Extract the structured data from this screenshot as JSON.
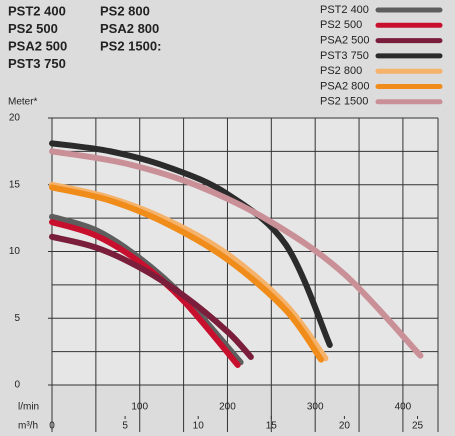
{
  "chart_data": {
    "type": "line",
    "header": [
      "PST2 400",
      "PS2 500",
      "PSA2 500",
      "PST3 750",
      "PS2 800",
      "PSA2 800",
      "PS2 1500:"
    ],
    "y_label": "Meter*",
    "x_label": "m³/h",
    "x2_label": "l/min",
    "xlim": [
      0,
      26.4
    ],
    "xticks": [
      0,
      5,
      10,
      15,
      20,
      25
    ],
    "x2lim": [
      0,
      440
    ],
    "x2ticks": [
      100,
      200,
      300,
      400
    ],
    "x2grid": [
      0,
      50,
      100,
      150,
      200,
      250,
      300,
      350,
      400
    ],
    "ylim": [
      0,
      20
    ],
    "yticks": [
      0,
      5,
      10,
      15,
      20
    ],
    "ygrid": [
      2.5,
      5,
      7.5,
      10,
      12.5,
      15,
      17.5,
      20
    ],
    "series": [
      {
        "name": "PST2 400",
        "color": "#5e5e5e",
        "x": [
          0,
          3,
          6,
          9,
          12.9
        ],
        "values": [
          12.6,
          11.6,
          9.5,
          6.6,
          1.7
        ]
      },
      {
        "name": "PS2 500",
        "color": "#c8102e",
        "x": [
          0,
          3,
          6,
          9,
          12.7
        ],
        "values": [
          12.2,
          11.2,
          9.2,
          6.3,
          1.5
        ]
      },
      {
        "name": "PSA2 500",
        "color": "#7a1e3c",
        "x": [
          0,
          3,
          6,
          9,
          12,
          13.6
        ],
        "values": [
          11.1,
          10.3,
          8.8,
          6.7,
          4.0,
          2.1
        ]
      },
      {
        "name": "PST3 750",
        "color": "#2b2b2b",
        "x": [
          0,
          4,
          8,
          12,
          16,
          19
        ],
        "values": [
          18.1,
          17.5,
          16.3,
          14.3,
          10.5,
          3.0
        ]
      },
      {
        "name": "PS2 800",
        "color": "#f5b26b",
        "x": [
          0,
          4,
          8,
          12,
          16,
          18.7
        ],
        "values": [
          15.0,
          14.0,
          12.3,
          9.8,
          6.0,
          2.0
        ]
      },
      {
        "name": "PSA2 800",
        "color": "#f08c1a",
        "x": [
          0,
          4,
          8,
          12,
          16,
          18.4
        ],
        "values": [
          14.8,
          13.8,
          12.0,
          9.4,
          5.6,
          1.9
        ]
      },
      {
        "name": "PS2 1500",
        "color": "#c99097",
        "x": [
          0,
          5,
          10,
          15,
          20,
          25.2
        ],
        "values": [
          17.5,
          16.6,
          14.9,
          12.2,
          8.3,
          2.2
        ]
      }
    ]
  }
}
